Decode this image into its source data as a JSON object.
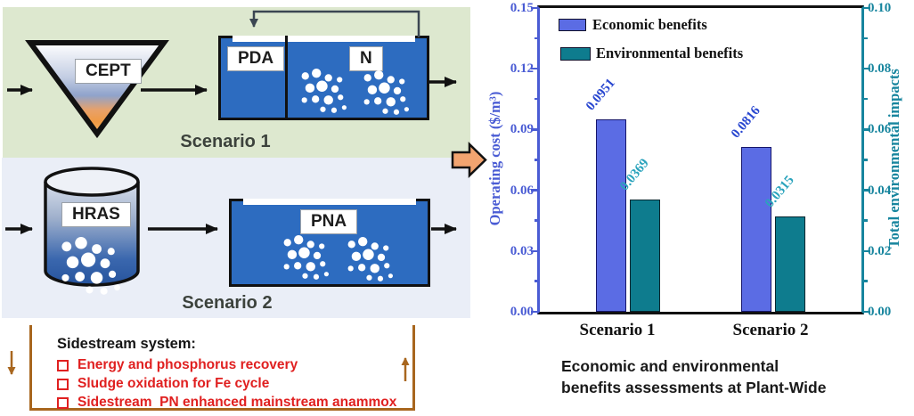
{
  "diagram": {
    "scenario1": {
      "label": "Scenario 1",
      "clarifier_label": "CEPT",
      "tank_zone_labels": [
        "PDA",
        "N"
      ]
    },
    "scenario2": {
      "label": "Scenario 2",
      "reactor_label": "HRAS",
      "tank_label": "PNA"
    },
    "sidestream": {
      "title": "Sidestream system:",
      "items": [
        "Energy and phosphorus recovery",
        "Sludge oxidation for Fe cycle",
        "Sidestream  PN enhanced mainstream anammox"
      ]
    },
    "colors": {
      "panel1_bg": "#dde8cf",
      "panel2_bg": "#eaeef7",
      "tank_blue": "#2d6cc0",
      "block_arrow_fill": "#f2a470",
      "sidestream_border": "#a8661e",
      "sidestream_text": "#e02020",
      "flow_arrow": "#111111",
      "recycle_pipe": "#3b4652"
    }
  },
  "chart_data": {
    "type": "bar",
    "categories": [
      "Scenario 1",
      "Scenario 2"
    ],
    "series": [
      {
        "name": "Economic benefits",
        "axis": "left",
        "values": [
          0.0951,
          0.0816
        ],
        "value_labels": [
          "0.0951",
          "0.0816"
        ],
        "color": "#5b6ce4",
        "edge_color": "#16166a",
        "label_color": "#2947d0"
      },
      {
        "name": "Environmental benefits",
        "axis": "right",
        "values": [
          0.0369,
          0.0315
        ],
        "value_labels": [
          "0.0369",
          "0.0315"
        ],
        "color": "#0e7c8e",
        "edge_color": "#05262e",
        "label_color": "#2aa3bc"
      }
    ],
    "left_axis": {
      "label": "Operating cost ($/m³)",
      "ticks": [
        "0.00",
        "0.03",
        "0.06",
        "0.09",
        "0.12",
        "0.15"
      ],
      "range": [
        0,
        0.15
      ],
      "color": "#4a5cd4"
    },
    "right_axis": {
      "label": "Total environmental impacts",
      "ticks": [
        "0.00",
        "0.02",
        "0.04",
        "0.06",
        "0.08",
        "0.10"
      ],
      "range": [
        0,
        0.1
      ],
      "color": "#17859e"
    },
    "legend_position": "top-left",
    "grid": false,
    "caption": {
      "line1": "Economic and environmental",
      "line2": "benefits assessments at Plant-Wide"
    }
  }
}
